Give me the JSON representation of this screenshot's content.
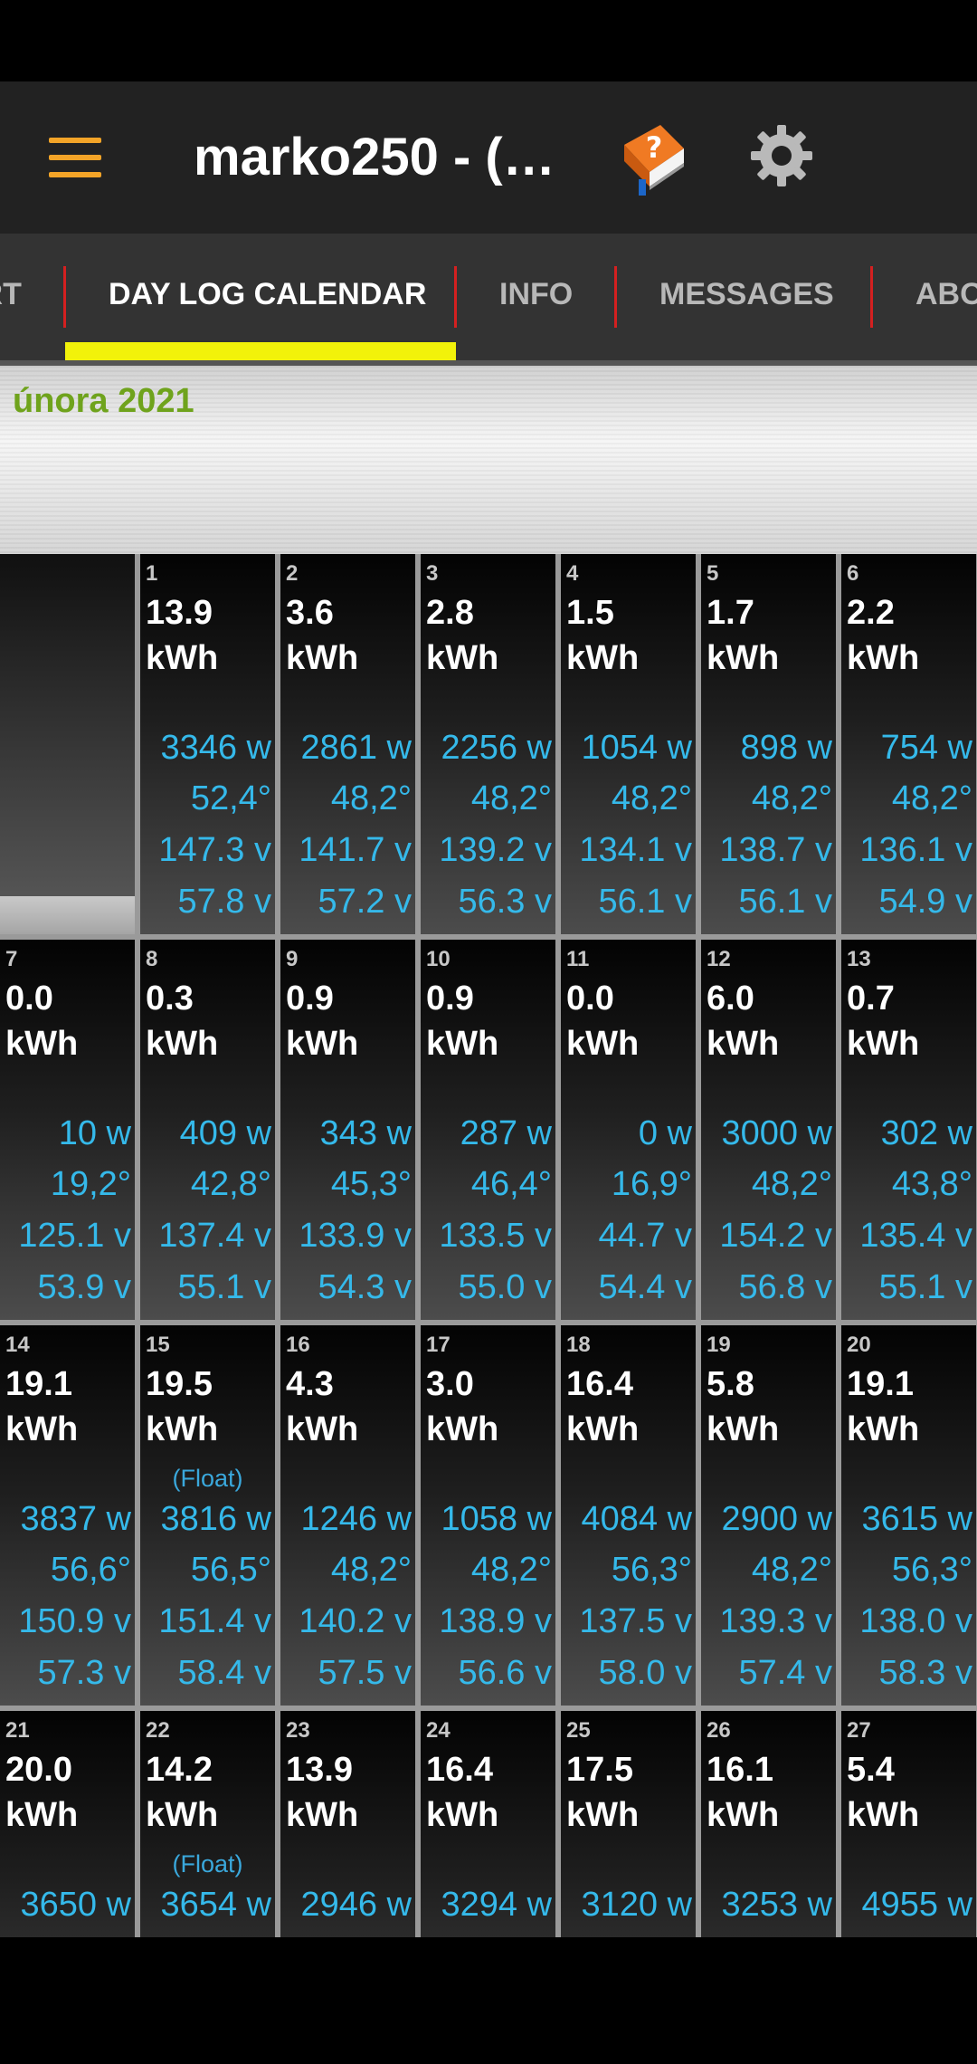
{
  "header": {
    "title": "marko250 - (…"
  },
  "tabs": [
    {
      "label": "ART",
      "active": false
    },
    {
      "label": "DAY LOG CALENDAR",
      "active": true
    },
    {
      "label": "INFO",
      "active": false
    },
    {
      "label": "MESSAGES",
      "active": false
    },
    {
      "label": "ABOUT",
      "active": false
    }
  ],
  "calendar": {
    "month": "února 2021",
    "days": [
      {
        "day": "1",
        "kwh": "13.9",
        "unit": "kWh",
        "mode": "",
        "watts": "3346 w",
        "temp": "52,4°",
        "v1": "147.3 v",
        "v2": "57.8 v"
      },
      {
        "day": "2",
        "kwh": "3.6",
        "unit": "kWh",
        "mode": "",
        "watts": "2861 w",
        "temp": "48,2°",
        "v1": "141.7 v",
        "v2": "57.2 v"
      },
      {
        "day": "3",
        "kwh": "2.8",
        "unit": "kWh",
        "mode": "",
        "watts": "2256 w",
        "temp": "48,2°",
        "v1": "139.2 v",
        "v2": "56.3 v"
      },
      {
        "day": "4",
        "kwh": "1.5",
        "unit": "kWh",
        "mode": "",
        "watts": "1054 w",
        "temp": "48,2°",
        "v1": "134.1 v",
        "v2": "56.1 v"
      },
      {
        "day": "5",
        "kwh": "1.7",
        "unit": "kWh",
        "mode": "",
        "watts": "898 w",
        "temp": "48,2°",
        "v1": "138.7 v",
        "v2": "56.1 v"
      },
      {
        "day": "6",
        "kwh": "2.2",
        "unit": "kWh",
        "mode": "",
        "watts": "754 w",
        "temp": "48,2°",
        "v1": "136.1 v",
        "v2": "54.9 v"
      },
      {
        "day": "7",
        "kwh": "0.0",
        "unit": "kWh",
        "mode": "",
        "watts": "10 w",
        "temp": "19,2°",
        "v1": "125.1 v",
        "v2": "53.9 v"
      },
      {
        "day": "8",
        "kwh": "0.3",
        "unit": "kWh",
        "mode": "",
        "watts": "409 w",
        "temp": "42,8°",
        "v1": "137.4 v",
        "v2": "55.1 v"
      },
      {
        "day": "9",
        "kwh": "0.9",
        "unit": "kWh",
        "mode": "",
        "watts": "343 w",
        "temp": "45,3°",
        "v1": "133.9 v",
        "v2": "54.3 v"
      },
      {
        "day": "10",
        "kwh": "0.9",
        "unit": "kWh",
        "mode": "",
        "watts": "287 w",
        "temp": "46,4°",
        "v1": "133.5 v",
        "v2": "55.0 v"
      },
      {
        "day": "11",
        "kwh": "0.0",
        "unit": "kWh",
        "mode": "",
        "watts": "0 w",
        "temp": "16,9°",
        "v1": "44.7 v",
        "v2": "54.4 v"
      },
      {
        "day": "12",
        "kwh": "6.0",
        "unit": "kWh",
        "mode": "",
        "watts": "3000 w",
        "temp": "48,2°",
        "v1": "154.2 v",
        "v2": "56.8 v"
      },
      {
        "day": "13",
        "kwh": "0.7",
        "unit": "kWh",
        "mode": "",
        "watts": "302 w",
        "temp": "43,8°",
        "v1": "135.4 v",
        "v2": "55.1 v"
      },
      {
        "day": "14",
        "kwh": "19.1",
        "unit": "kWh",
        "mode": "",
        "watts": "3837 w",
        "temp": "56,6°",
        "v1": "150.9 v",
        "v2": "57.3 v"
      },
      {
        "day": "15",
        "kwh": "19.5",
        "unit": "kWh",
        "mode": "(Float)",
        "watts": "3816 w",
        "temp": "56,5°",
        "v1": "151.4 v",
        "v2": "58.4 v"
      },
      {
        "day": "16",
        "kwh": "4.3",
        "unit": "kWh",
        "mode": "",
        "watts": "1246 w",
        "temp": "48,2°",
        "v1": "140.2 v",
        "v2": "57.5 v"
      },
      {
        "day": "17",
        "kwh": "3.0",
        "unit": "kWh",
        "mode": "",
        "watts": "1058 w",
        "temp": "48,2°",
        "v1": "138.9 v",
        "v2": "56.6 v"
      },
      {
        "day": "18",
        "kwh": "16.4",
        "unit": "kWh",
        "mode": "",
        "watts": "4084 w",
        "temp": "56,3°",
        "v1": "137.5 v",
        "v2": "58.0 v"
      },
      {
        "day": "19",
        "kwh": "5.8",
        "unit": "kWh",
        "mode": "",
        "watts": "2900 w",
        "temp": "48,2°",
        "v1": "139.3 v",
        "v2": "57.4 v"
      },
      {
        "day": "20",
        "kwh": "19.1",
        "unit": "kWh",
        "mode": "",
        "watts": "3615 w",
        "temp": "56,3°",
        "v1": "138.0 v",
        "v2": "58.3 v"
      },
      {
        "day": "21",
        "kwh": "20.0",
        "unit": "kWh",
        "mode": "",
        "watts": "3650 w",
        "temp": "",
        "v1": "",
        "v2": ""
      },
      {
        "day": "22",
        "kwh": "14.2",
        "unit": "kWh",
        "mode": "(Float)",
        "watts": "3654 w",
        "temp": "",
        "v1": "",
        "v2": ""
      },
      {
        "day": "23",
        "kwh": "13.9",
        "unit": "kWh",
        "mode": "",
        "watts": "2946 w",
        "temp": "",
        "v1": "",
        "v2": ""
      },
      {
        "day": "24",
        "kwh": "16.4",
        "unit": "kWh",
        "mode": "",
        "watts": "3294 w",
        "temp": "",
        "v1": "",
        "v2": ""
      },
      {
        "day": "25",
        "kwh": "17.5",
        "unit": "kWh",
        "mode": "",
        "watts": "3120 w",
        "temp": "",
        "v1": "",
        "v2": ""
      },
      {
        "day": "26",
        "kwh": "16.1",
        "unit": "kWh",
        "mode": "",
        "watts": "3253 w",
        "temp": "",
        "v1": "",
        "v2": ""
      },
      {
        "day": "27",
        "kwh": "5.4",
        "unit": "kWh",
        "mode": "",
        "watts": "4955 w",
        "temp": "",
        "v1": "",
        "v2": ""
      }
    ]
  },
  "colors": {
    "accent_menu": "#f3a428",
    "tab_indicator": "#f2f20a",
    "tab_divider": "#d42020",
    "month_text": "#6fa31c",
    "value_text": "#35b9ea"
  },
  "icons": {
    "menu": "hamburger-menu-icon",
    "help": "help-book-icon",
    "settings": "gear-icon"
  }
}
